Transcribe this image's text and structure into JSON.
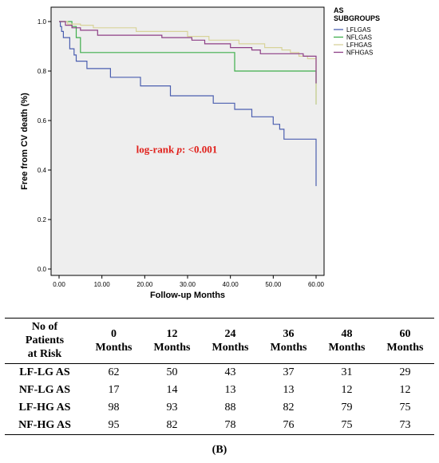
{
  "chart_data": {
    "type": "line",
    "step": true,
    "ylabel": "Free from CV death (%)",
    "xlabel": "Follow-up Months",
    "xlim": [
      0,
      60
    ],
    "ylim": [
      0,
      1.0
    ],
    "x_ticks": [
      "0.00",
      "10.00",
      "20.00",
      "30.00",
      "40.00",
      "50.00",
      "60.00"
    ],
    "y_ticks": [
      "0.0",
      "0.2",
      "0.4",
      "0.6",
      "0.8",
      "1.0"
    ],
    "background": "#eeeeee",
    "legend_position": "top-right",
    "legend_title_lines": [
      "AS",
      "SUBGROUPS"
    ],
    "annotation": {
      "prefix": "log-rank ",
      "italic": "p",
      "suffix": ": <0.001",
      "color": "#e0201b",
      "at": [
        18,
        0.47
      ]
    },
    "series": [
      {
        "name": "LFLGAS",
        "color": "#4b5fb0",
        "points": [
          [
            0,
            1.0
          ],
          [
            0.3,
            0.98
          ],
          [
            0.6,
            0.96
          ],
          [
            1,
            0.935
          ],
          [
            2.5,
            0.89
          ],
          [
            3.5,
            0.865
          ],
          [
            4,
            0.84
          ],
          [
            6.5,
            0.81
          ],
          [
            12,
            0.775
          ],
          [
            19,
            0.74
          ],
          [
            26,
            0.7
          ],
          [
            36,
            0.67
          ],
          [
            41,
            0.645
          ],
          [
            45,
            0.615
          ],
          [
            50,
            0.585
          ],
          [
            51.5,
            0.565
          ],
          [
            52.5,
            0.525
          ],
          [
            60,
            0.335
          ]
        ]
      },
      {
        "name": "NFLGAS",
        "color": "#3fae4c",
        "points": [
          [
            0,
            1.0
          ],
          [
            3,
            0.98
          ],
          [
            4,
            0.935
          ],
          [
            5,
            0.875
          ],
          [
            41,
            0.8
          ],
          [
            60,
            0.665
          ]
        ]
      },
      {
        "name": "LFHGAS",
        "color": "#d8d39a",
        "points": [
          [
            0,
            1.0
          ],
          [
            2,
            0.99
          ],
          [
            5,
            0.985
          ],
          [
            8,
            0.975
          ],
          [
            18,
            0.96
          ],
          [
            30,
            0.94
          ],
          [
            35,
            0.925
          ],
          [
            42,
            0.91
          ],
          [
            48,
            0.895
          ],
          [
            52,
            0.885
          ],
          [
            54,
            0.875
          ],
          [
            56,
            0.86
          ],
          [
            58,
            0.85
          ],
          [
            60,
            0.665
          ]
        ]
      },
      {
        "name": "NFHGAS",
        "color": "#8d3f86",
        "points": [
          [
            0,
            1.0
          ],
          [
            1.5,
            0.985
          ],
          [
            3,
            0.975
          ],
          [
            5,
            0.965
          ],
          [
            9,
            0.945
          ],
          [
            24,
            0.935
          ],
          [
            31,
            0.925
          ],
          [
            34,
            0.91
          ],
          [
            40,
            0.895
          ],
          [
            45,
            0.885
          ],
          [
            47,
            0.87
          ],
          [
            57,
            0.86
          ],
          [
            60,
            0.75
          ]
        ]
      }
    ]
  },
  "risk_table": {
    "header": [
      [
        "No of",
        "Patients",
        "at Risk"
      ],
      [
        "0",
        "Months"
      ],
      [
        "12",
        "Months"
      ],
      [
        "24",
        "Months"
      ],
      [
        "36",
        "Months"
      ],
      [
        "48",
        "Months"
      ],
      [
        "60",
        "Months"
      ]
    ],
    "rows": [
      [
        "LF-LG AS",
        "62",
        "50",
        "43",
        "37",
        "31",
        "29"
      ],
      [
        "NF-LG AS",
        "17",
        "14",
        "13",
        "13",
        "12",
        "12"
      ],
      [
        "LF-HG AS",
        "98",
        "93",
        "88",
        "82",
        "79",
        "75"
      ],
      [
        "NF-HG AS",
        "95",
        "82",
        "78",
        "76",
        "75",
        "73"
      ]
    ]
  },
  "panel_label": "(B)"
}
